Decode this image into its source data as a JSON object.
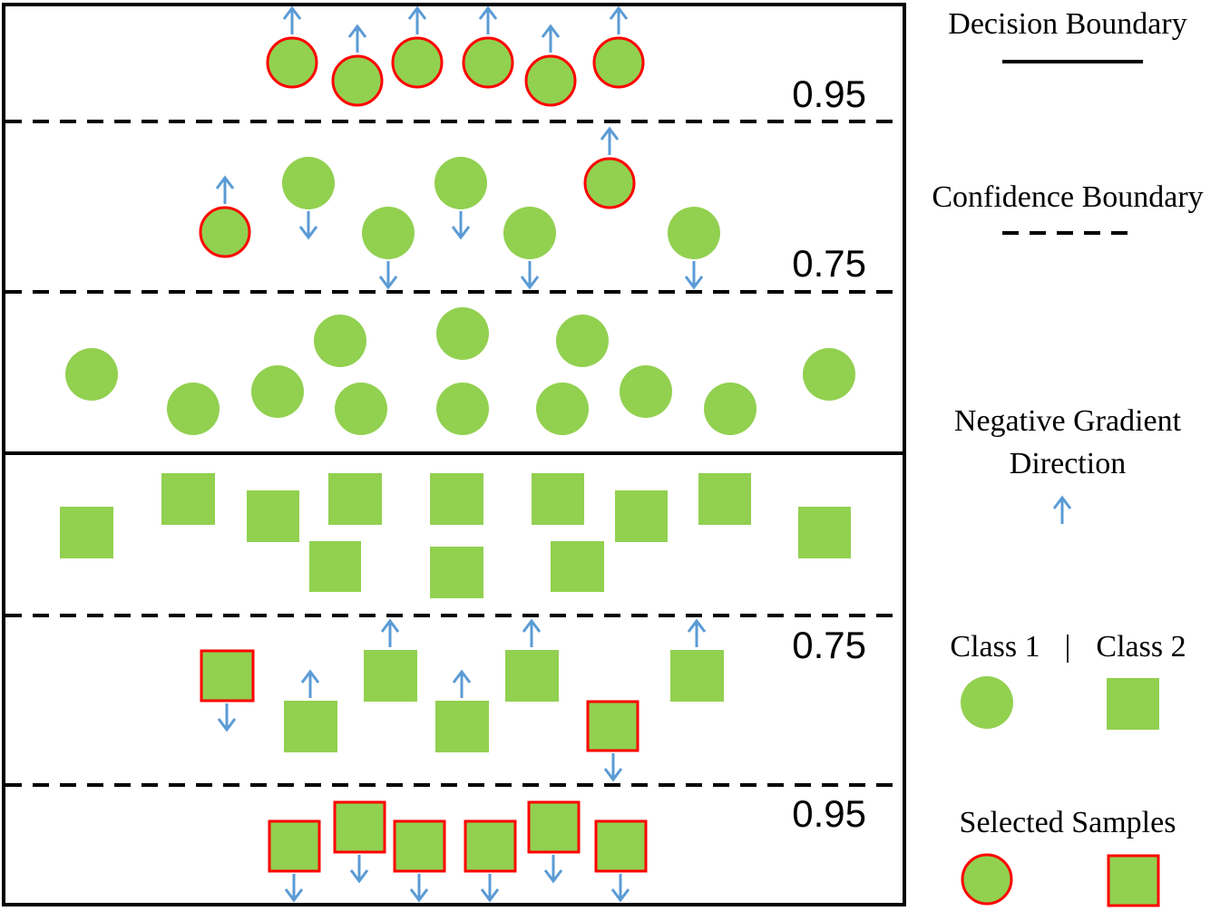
{
  "thresholds": {
    "top_class1": "0.95",
    "mid_class1": "0.75",
    "mid_class2": "0.75",
    "bottom_class2": "0.95"
  },
  "legend": {
    "decision_boundary": "Decision Boundary",
    "confidence_boundary": "Confidence Boundary",
    "gradient_line1": "Negative Gradient",
    "gradient_line2": "Direction",
    "class1": "Class 1",
    "separator": "|",
    "class2": "Class 2",
    "selected": "Selected Samples"
  },
  "colors": {
    "sample_fill": "#92d050",
    "selected_outline": "#ff0000",
    "arrow": "#5b9bd5",
    "line": "#000000"
  }
}
